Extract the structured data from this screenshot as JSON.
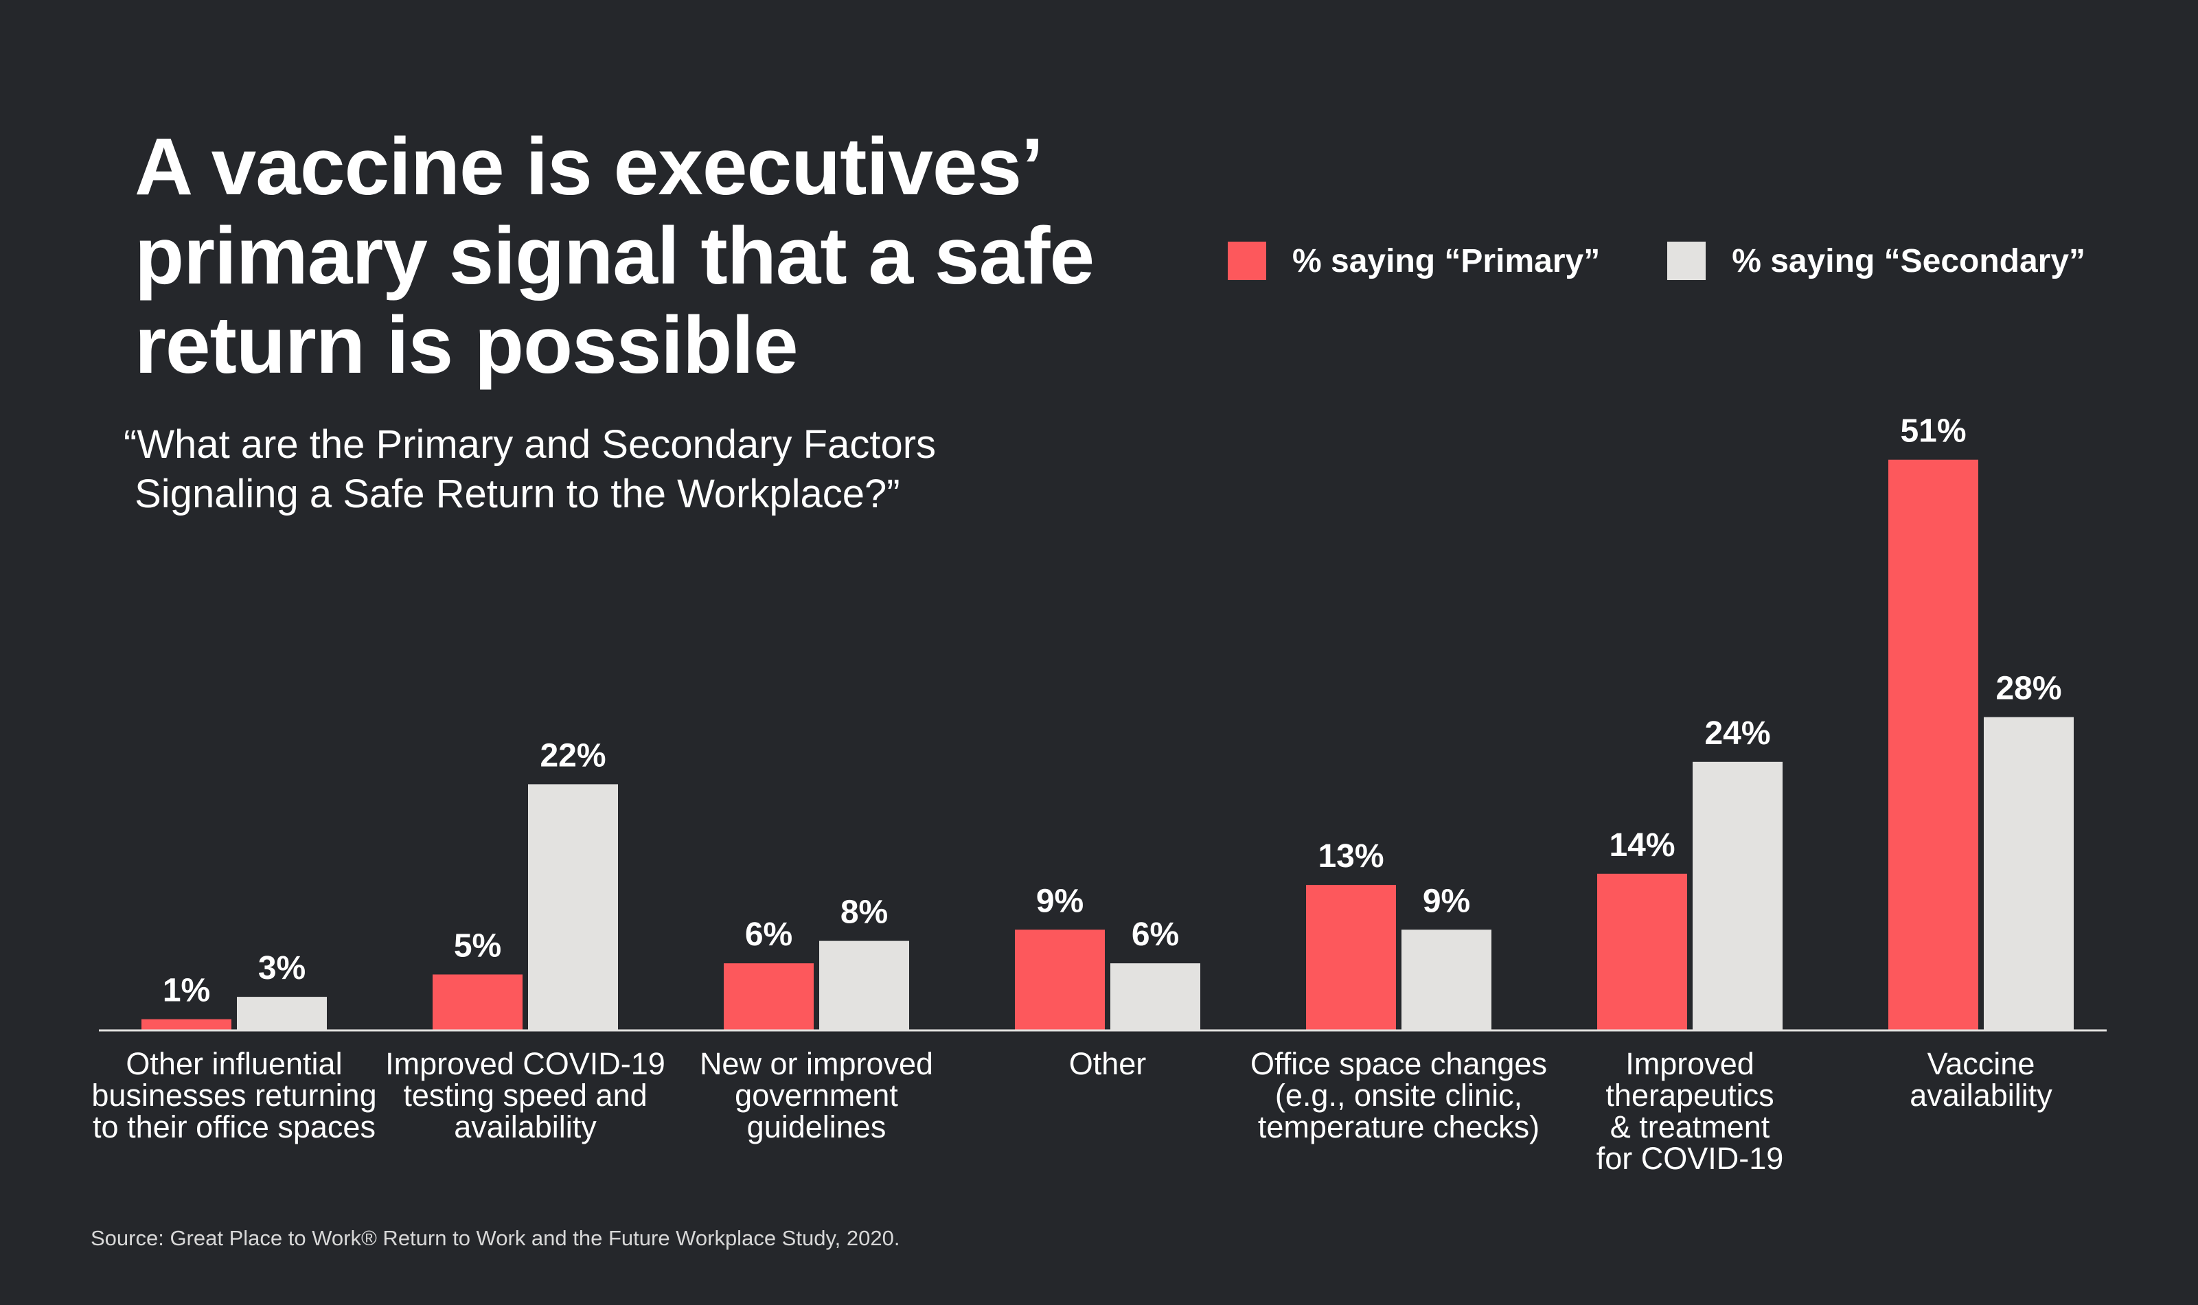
{
  "title_lines": [
    "A vaccine is executives’",
    "primary signal that a safe",
    "return is possible"
  ],
  "subtitle_lines": [
    "“What are the Primary and Secondary Factors",
    " Signaling a Safe Return to the Workplace?”"
  ],
  "source": "Source: Great Place to Work® Return to Work and the Future Workplace Study, 2020.",
  "colors": {
    "primary": "#fd585c",
    "secondary": "#e3e2e0",
    "background": "#25272b",
    "text": "#ffffff"
  },
  "chart_data": {
    "type": "bar",
    "value_suffix": "%",
    "legend_position": "top-right",
    "grid": false,
    "ylim": [
      0,
      55
    ],
    "categories": [
      [
        "Other influential",
        "businesses returning",
        "to their office spaces"
      ],
      [
        "Improved COVID-19",
        "testing speed and",
        "availability"
      ],
      [
        "New or improved",
        "government",
        "guidelines"
      ],
      [
        "Other"
      ],
      [
        "Office space changes",
        "(e.g., onsite clinic,",
        "temperature checks)"
      ],
      [
        "Improved",
        "therapeutics",
        "& treatment",
        "for COVID-19"
      ],
      [
        "Vaccine",
        "availability"
      ]
    ],
    "series": [
      {
        "name": "% saying “Primary”",
        "color": "#fd585c",
        "values": [
          1,
          5,
          6,
          9,
          13,
          14,
          51
        ]
      },
      {
        "name": "% saying “Secondary”",
        "color": "#e3e2e0",
        "values": [
          3,
          22,
          8,
          6,
          9,
          24,
          28
        ]
      }
    ]
  }
}
